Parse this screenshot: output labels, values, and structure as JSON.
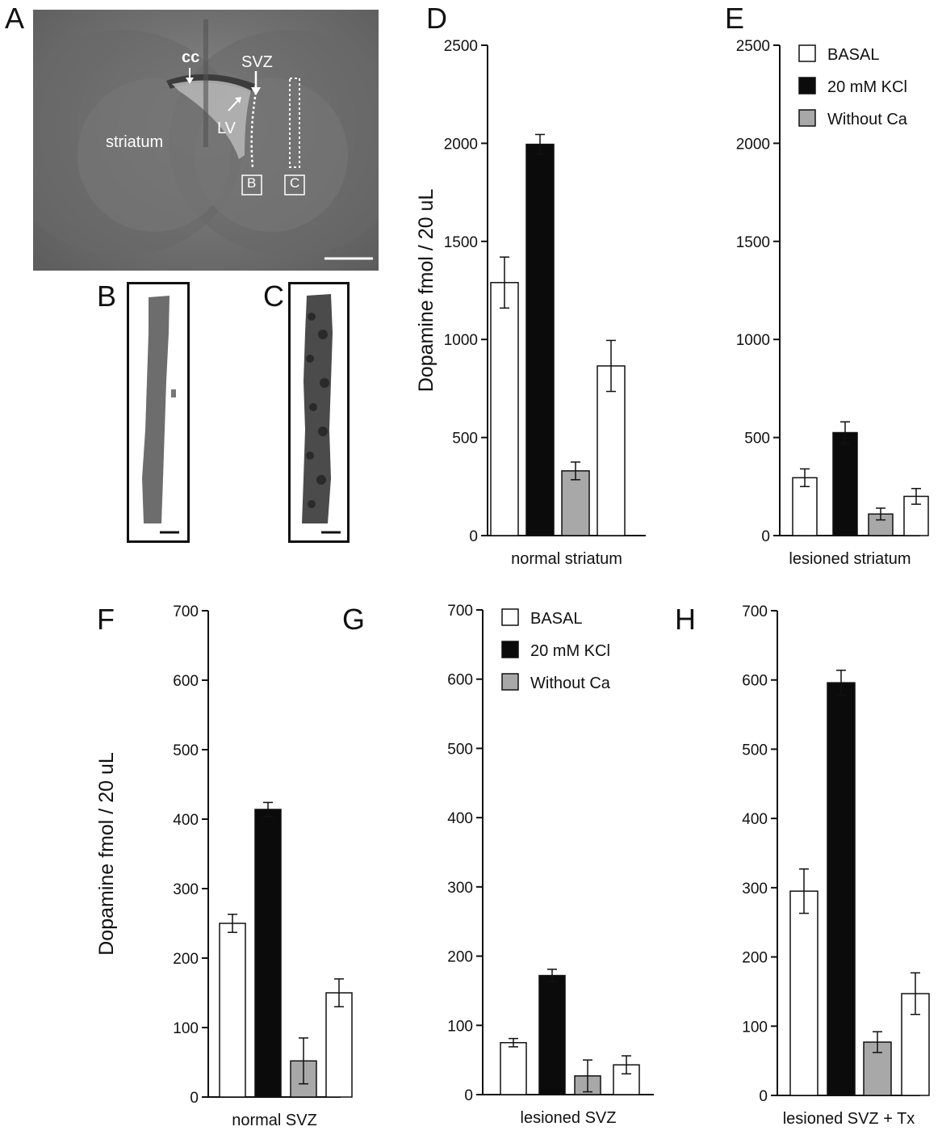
{
  "panels": {
    "A": "A",
    "B": "B",
    "C": "C",
    "D": "D",
    "E": "E",
    "F": "F",
    "G": "G",
    "H": "H"
  },
  "micrograph": {
    "labels": {
      "cc": "cc",
      "svz": "SVZ",
      "lv": "LV",
      "striatum": "striatum",
      "box_b": "B",
      "box_c": "C"
    }
  },
  "legend": {
    "items": [
      "BASAL",
      "20 mM KCl",
      "Without Ca"
    ]
  },
  "colors": {
    "basal": "#ffffff",
    "kcl": "#0b0b0b",
    "without_ca": "#a8a8a8",
    "stroke": "#111111"
  },
  "chart_data": [
    {
      "id": "D",
      "type": "bar",
      "xlabel": "normal striatum",
      "ylabel": "Dopamine fmol / 20 uL",
      "ylim": [
        0,
        2500
      ],
      "yticks": [
        0,
        500,
        1000,
        1500,
        2000,
        2500
      ],
      "bars": [
        {
          "group": "BASAL",
          "value": 1290,
          "error": 130
        },
        {
          "group": "20 mM KCl",
          "value": 1995,
          "error": 50
        },
        {
          "group": "Without Ca",
          "value": 330,
          "error": 45
        },
        {
          "group": "BASAL",
          "value": 865,
          "error": 130
        }
      ]
    },
    {
      "id": "E",
      "type": "bar",
      "xlabel": "lesioned striatum",
      "ylabel": "",
      "ylim": [
        0,
        2500
      ],
      "yticks": [
        0,
        500,
        1000,
        1500,
        2000,
        2500
      ],
      "bars": [
        {
          "group": "BASAL",
          "value": 295,
          "error": 45
        },
        {
          "group": "20 mM KCl",
          "value": 525,
          "error": 55
        },
        {
          "group": "Without Ca",
          "value": 110,
          "error": 30
        },
        {
          "group": "BASAL",
          "value": 200,
          "error": 40
        }
      ]
    },
    {
      "id": "F",
      "type": "bar",
      "xlabel": "normal SVZ",
      "ylabel": "Dopamine  fmol / 20 uL",
      "ylim": [
        0,
        700
      ],
      "yticks": [
        0,
        100,
        200,
        300,
        400,
        500,
        600,
        700
      ],
      "bars": [
        {
          "group": "BASAL",
          "value": 250,
          "error": 13
        },
        {
          "group": "20 mM KCl",
          "value": 414,
          "error": 10
        },
        {
          "group": "Without Ca",
          "value": 52,
          "error": 33
        },
        {
          "group": "BASAL",
          "value": 150,
          "error": 20
        }
      ]
    },
    {
      "id": "G",
      "type": "bar",
      "xlabel": "lesioned SVZ",
      "ylabel": "",
      "ylim": [
        0,
        700
      ],
      "yticks": [
        0,
        100,
        200,
        300,
        400,
        500,
        600,
        700
      ],
      "bars": [
        {
          "group": "BASAL",
          "value": 75,
          "error": 6
        },
        {
          "group": "20 mM KCl",
          "value": 172,
          "error": 9
        },
        {
          "group": "Without Ca",
          "value": 27,
          "error": 23
        },
        {
          "group": "BASAL",
          "value": 43,
          "error": 13
        }
      ]
    },
    {
      "id": "H",
      "type": "bar",
      "xlabel": "lesioned SVZ + Tx",
      "ylabel": "",
      "ylim": [
        0,
        700
      ],
      "yticks": [
        0,
        100,
        200,
        300,
        400,
        500,
        600,
        700
      ],
      "bars": [
        {
          "group": "BASAL",
          "value": 295,
          "error": 32
        },
        {
          "group": "20 mM KCl",
          "value": 596,
          "error": 18
        },
        {
          "group": "Without Ca",
          "value": 77,
          "error": 15
        },
        {
          "group": "BASAL",
          "value": 147,
          "error": 30
        }
      ]
    }
  ]
}
